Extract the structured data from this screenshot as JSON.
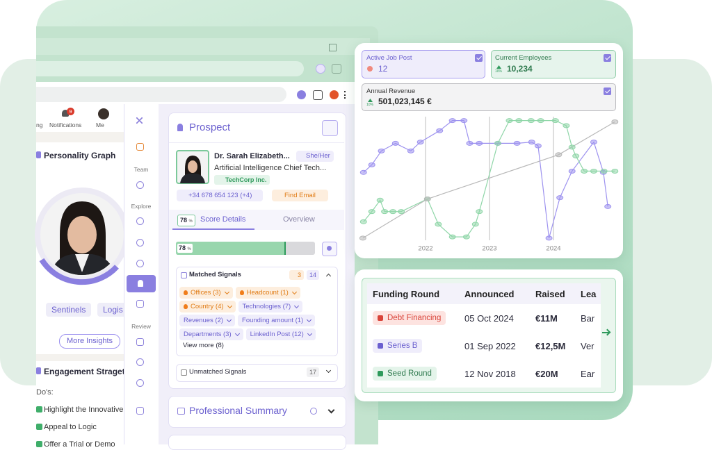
{
  "linkedin": {
    "nav": [
      "ng",
      "Notifications",
      "Me"
    ],
    "badge": 9,
    "personality_title": "Personality Graph",
    "tags": [
      "Sentinels",
      "Logis"
    ],
    "more_insights": "More Insights",
    "engagement_title": "Engagement Straget",
    "dos_label": "Do's:",
    "dos": [
      "Highlight the Innovative",
      "Appeal to Logic",
      "Offer a Trial or Demo"
    ]
  },
  "sidebar": {
    "sections": [
      "Team",
      "Explore",
      "Review"
    ]
  },
  "prospect": {
    "title": "Prospect",
    "name": "Dr. Sarah Elizabeth...",
    "pronouns": "She/Her",
    "job_title": "Artificial Intelligence Chief Tech...",
    "company": "TechCorp Inc.",
    "phone": "+34 678 654 123 (+4)",
    "find_email": "Find Email",
    "score": 78,
    "score_unit": "%",
    "tabs": [
      "Score Details",
      "Overview"
    ],
    "matched_title": "Matched Signals",
    "matched_hot": 3,
    "matched_count": 14,
    "signals": [
      {
        "label": "Offices (3)",
        "hot": true
      },
      {
        "label": "Headcount (1)",
        "hot": true
      },
      {
        "label": "Country (4)",
        "hot": true
      },
      {
        "label": "Technologies (7)",
        "hot": false
      },
      {
        "label": "Revenues (2)",
        "hot": false
      },
      {
        "label": "Founding amount (1)",
        "hot": false
      },
      {
        "label": "Departments (3)",
        "hot": false
      },
      {
        "label": "LinkedIn Post (12)",
        "hot": false
      }
    ],
    "view_more": "View more (8)",
    "unmatched_title": "Unmatched Signals",
    "unmatched_count": 17,
    "summary_title": "Professional Summary"
  },
  "metrics": [
    {
      "label": "Active Job Post",
      "value": 12
    },
    {
      "label": "Current Employees",
      "value": "10,234",
      "change": "10%"
    },
    {
      "label": "Annual Revenue",
      "value": "501,023,145 €",
      "change": "10%"
    }
  ],
  "chart_data": {
    "type": "line",
    "xlim": [
      2021,
      2025
    ],
    "ylim": [
      0,
      100
    ],
    "xticks": [
      2022,
      2023,
      2024
    ],
    "grid": true,
    "series": [
      {
        "color": "#9d92ef",
        "x": [
          2021.03,
          2021.16,
          2021.31,
          2021.53,
          2021.77,
          2021.92,
          2022.22,
          2022.42,
          2022.6,
          2022.69,
          2022.84,
          2023.13,
          2023.43,
          2023.66,
          2023.76,
          2023.93,
          2024.1,
          2024.29,
          2024.63,
          2024.78,
          2024.85
        ],
        "values": [
          57,
          63,
          74,
          80,
          74,
          81,
          90,
          98,
          98,
          80,
          80,
          80,
          80,
          81,
          78,
          5,
          37,
          58,
          81,
          57,
          30
        ]
      },
      {
        "color": "#8fd6a8",
        "x": [
          2021.03,
          2021.16,
          2021.29,
          2021.36,
          2021.49,
          2021.62,
          2022.03,
          2022.2,
          2022.42,
          2022.64,
          2022.78,
          2022.84,
          2023.13,
          2023.31,
          2023.46,
          2023.65,
          2023.8,
          2024.03,
          2024.2,
          2024.29,
          2024.35,
          2024.48,
          2024.63,
          2024.79,
          2024.96
        ],
        "values": [
          18,
          26,
          35,
          26,
          26,
          26,
          36,
          16,
          6,
          6,
          16,
          26,
          80,
          98,
          98,
          98,
          98,
          98,
          94,
          77,
          70,
          58,
          58,
          58,
          58
        ]
      },
      {
        "color": "#b8b8b8",
        "x": [
          2021.02,
          2022.03,
          2024.08,
          2024.96
        ],
        "values": [
          5,
          36,
          71,
          97
        ]
      }
    ]
  },
  "funding": {
    "columns": [
      "Funding Round",
      "Announced",
      "Raised",
      "Lea"
    ],
    "rows": [
      [
        "Debt Financing",
        "05 Oct 2024",
        "€11M",
        "Bar"
      ],
      [
        "Series B",
        "01 Sep 2022",
        "€12,5M",
        "Ver"
      ],
      [
        "Seed Round",
        "12 Nov 2018",
        "€20M",
        "Ear"
      ]
    ]
  }
}
